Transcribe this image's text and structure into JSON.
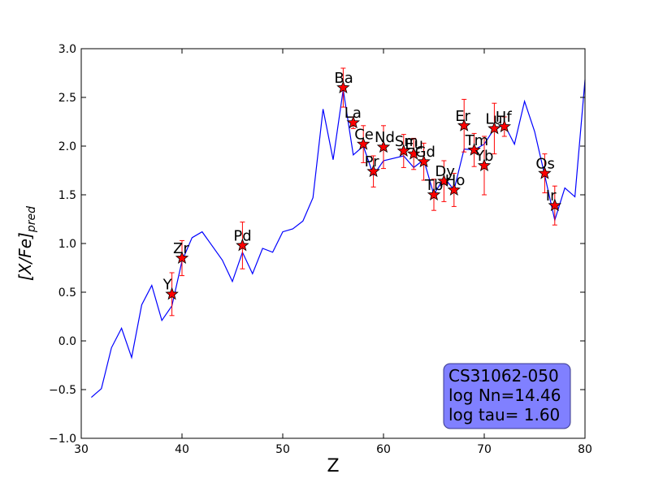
{
  "chart_data": {
    "type": "line",
    "xlabel": "Z",
    "ylabel": "[X/Fe]pred",
    "xlim": [
      30,
      80
    ],
    "ylim": [
      -1.0,
      3.0
    ],
    "x_ticks": [
      30,
      40,
      50,
      60,
      70,
      80
    ],
    "y_ticks": [
      -1.0,
      -0.5,
      0.0,
      0.5,
      1.0,
      1.5,
      2.0,
      2.5,
      3.0
    ],
    "x_tick_labels": [
      "30",
      "40",
      "50",
      "60",
      "70",
      "80"
    ],
    "y_tick_labels": [
      "−1.0",
      "−0.5",
      "0.0",
      "0.5",
      "1.0",
      "1.5",
      "2.0",
      "2.5",
      "3.0"
    ],
    "model_line": {
      "color": "#0000ff",
      "x": [
        31,
        32,
        33,
        34,
        35,
        36,
        37,
        38,
        39,
        40,
        41,
        42,
        44,
        45,
        46,
        47,
        48,
        49,
        50,
        51,
        52,
        53,
        54,
        55,
        56,
        57,
        58,
        59,
        60,
        62,
        63,
        64,
        65,
        66,
        67,
        68,
        69,
        70,
        71,
        72,
        73,
        74,
        75,
        76,
        77,
        78,
        79,
        80
      ],
      "y": [
        -0.58,
        -0.49,
        -0.07,
        0.13,
        -0.17,
        0.37,
        0.57,
        0.21,
        0.36,
        0.82,
        1.06,
        1.12,
        0.83,
        0.61,
        0.91,
        0.69,
        0.95,
        0.91,
        1.12,
        1.15,
        1.23,
        1.47,
        2.38,
        1.86,
        2.58,
        1.91,
        2.0,
        1.7,
        1.85,
        1.9,
        1.78,
        1.86,
        1.5,
        1.68,
        1.55,
        1.97,
        1.96,
        2.02,
        2.18,
        2.22,
        2.02,
        2.46,
        2.15,
        1.7,
        1.24,
        1.57,
        1.48,
        2.68
      ]
    },
    "observations": {
      "marker": "star",
      "color": "#ff0000",
      "error_color": "#ff0000",
      "points": [
        {
          "element": "Y",
          "z": 39,
          "y": 0.48,
          "err": 0.22
        },
        {
          "element": "Zr",
          "z": 40,
          "y": 0.85,
          "err": 0.18
        },
        {
          "element": "Pd",
          "z": 46,
          "y": 0.98,
          "err": 0.24
        },
        {
          "element": "Ba",
          "z": 56,
          "y": 2.6,
          "err": 0.2
        },
        {
          "element": "La",
          "z": 57,
          "y": 2.24,
          "err": 0.06
        },
        {
          "element": "Ce",
          "z": 58,
          "y": 2.02,
          "err": 0.19
        },
        {
          "element": "Pr",
          "z": 59,
          "y": 1.74,
          "err": 0.16
        },
        {
          "element": "Nd",
          "z": 60,
          "y": 1.99,
          "err": 0.22
        },
        {
          "element": "Sm",
          "z": 62,
          "y": 1.95,
          "err": 0.17
        },
        {
          "element": "Eu",
          "z": 63,
          "y": 1.92,
          "err": 0.16
        },
        {
          "element": "Gd",
          "z": 64,
          "y": 1.84,
          "err": 0.19
        },
        {
          "element": "Tb",
          "z": 65,
          "y": 1.5,
          "err": 0.16
        },
        {
          "element": "Dy",
          "z": 66,
          "y": 1.64,
          "err": 0.21
        },
        {
          "element": "Ho",
          "z": 67,
          "y": 1.55,
          "err": 0.17
        },
        {
          "element": "Er",
          "z": 68,
          "y": 2.21,
          "err": 0.27
        },
        {
          "element": "Tm",
          "z": 69,
          "y": 1.96,
          "err": 0.17
        },
        {
          "element": "Yb",
          "z": 70,
          "y": 1.8,
          "err": 0.3
        },
        {
          "element": "Lu",
          "z": 71,
          "y": 2.18,
          "err": 0.26
        },
        {
          "element": "Hf",
          "z": 72,
          "y": 2.2,
          "err": 0.1
        },
        {
          "element": "Os",
          "z": 76,
          "y": 1.72,
          "err": 0.2
        },
        {
          "element": "Ir",
          "z": 77,
          "y": 1.39,
          "err": 0.2
        }
      ]
    },
    "annotation": {
      "lines": [
        "CS31062-050",
        "log Nn=14.46",
        "log tau= 1.60"
      ],
      "placement": "bottom-right",
      "facecolor": "#8080ff"
    }
  }
}
